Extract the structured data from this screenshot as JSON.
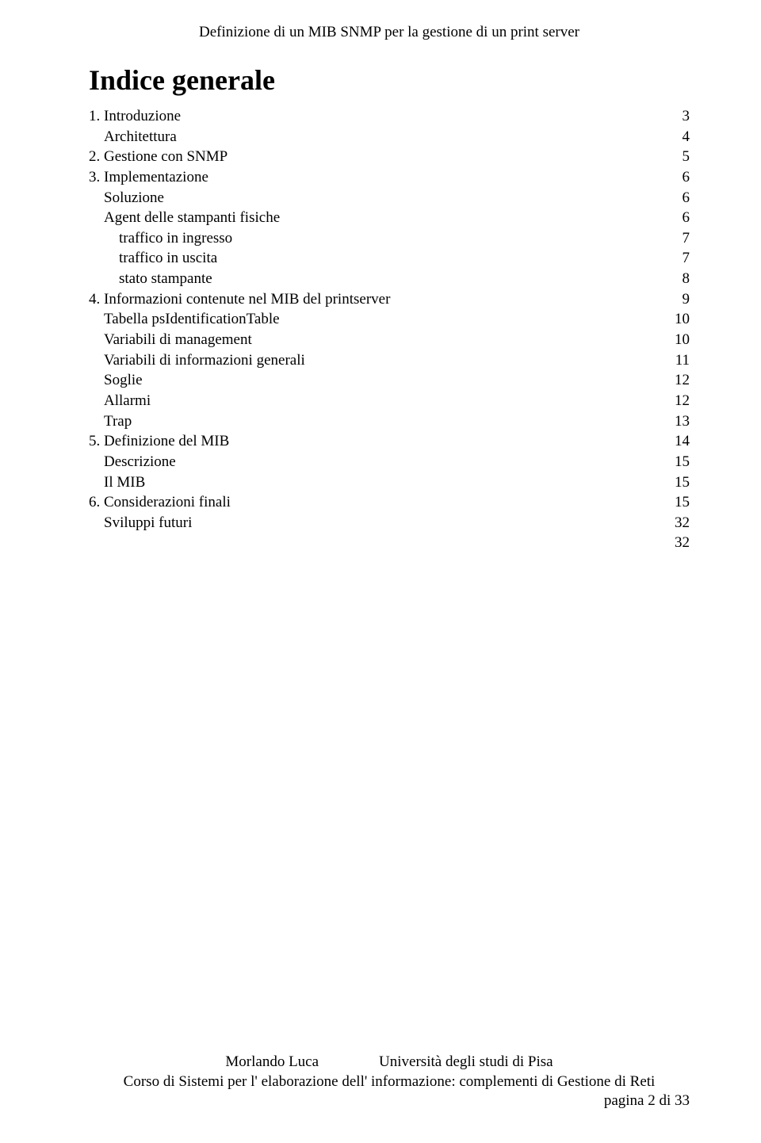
{
  "header": {
    "title": "Definizione di un MIB SNMP per la gestione di un print server"
  },
  "title": "Indice generale",
  "toc": [
    {
      "label": "1. Introduzione",
      "page": "3",
      "indent": 0
    },
    {
      "label": "Architettura",
      "page": "4",
      "indent": 1
    },
    {
      "label": "2. Gestione con SNMP",
      "page": "5",
      "indent": 0
    },
    {
      "label": "3. Implementazione",
      "page": "6",
      "indent": 0
    },
    {
      "label": "Soluzione",
      "page": "6",
      "indent": 1
    },
    {
      "label": "Agent delle stampanti fisiche",
      "page": "6",
      "indent": 1
    },
    {
      "label": "traffico in ingresso",
      "page": "7",
      "indent": 2
    },
    {
      "label": "traffico in uscita",
      "page": "7",
      "indent": 2
    },
    {
      "label": "stato stampante",
      "page": "8",
      "indent": 2
    },
    {
      "label": "4. Informazioni contenute nel MIB del printserver",
      "page": "9",
      "indent": 0
    },
    {
      "label": "Tabella psIdentificationTable",
      "page": "10",
      "indent": 1
    },
    {
      "label": "Variabili di management",
      "page": "10",
      "indent": 1
    },
    {
      "label": "Variabili di informazioni generali",
      "page": "11",
      "indent": 1
    },
    {
      "label": "Soglie",
      "page": "12",
      "indent": 1
    },
    {
      "label": "Allarmi",
      "page": "12",
      "indent": 1
    },
    {
      "label": "Trap",
      "page": "13",
      "indent": 1
    },
    {
      "label": "5. Definizione del MIB",
      "page": "14",
      "indent": 0
    },
    {
      "label": "Descrizione",
      "page": "15",
      "indent": 1
    },
    {
      "label": "Il MIB",
      "page": "15",
      "indent": 1
    },
    {
      "label": "6. Considerazioni finali",
      "page": "15",
      "indent": 0
    },
    {
      "label": "Sviluppi futuri",
      "page": "32",
      "indent": 1
    },
    {
      "label": "",
      "page": "32",
      "indent": 1,
      "hidden_label": true
    }
  ],
  "footer": {
    "line1_left": "Morlando Luca",
    "line1_right": "Università degli studi di Pisa",
    "line2": "Corso di Sistemi per l' elaborazione dell' informazione: complementi di Gestione di Reti",
    "pagenum": "pagina 2 di 33"
  },
  "style": {
    "background_color": "#ffffff",
    "text_color": "#000000",
    "header_fontsize": 19,
    "title_fontsize": 36,
    "toc_fontsize": 19,
    "footer_fontsize": 19,
    "font_family": "Times New Roman"
  }
}
